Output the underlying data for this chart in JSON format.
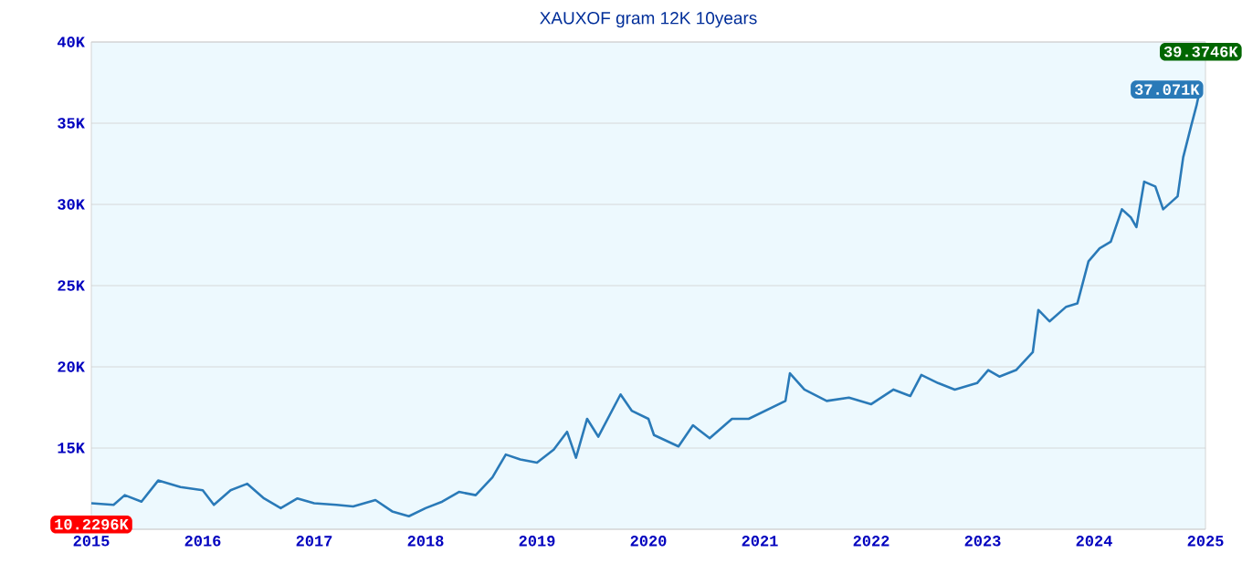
{
  "chart_data": {
    "type": "line",
    "title": "XAUXOF gram 12K 10years",
    "x": [
      2015.0,
      2015.2,
      2015.3,
      2015.45,
      2015.6,
      2015.8,
      2016.0,
      2016.1,
      2016.25,
      2016.4,
      2016.55,
      2016.7,
      2016.85,
      2017.0,
      2017.2,
      2017.35,
      2017.55,
      2017.7,
      2017.85,
      2018.0,
      2018.15,
      2018.3,
      2018.45,
      2018.6,
      2018.72,
      2018.85,
      2019.0,
      2019.15,
      2019.27,
      2019.35,
      2019.45,
      2019.55,
      2019.75,
      2019.85,
      2020.0,
      2020.05,
      2020.27,
      2020.4,
      2020.55,
      2020.75,
      2020.9,
      2021.23,
      2021.27,
      2021.4,
      2021.6,
      2021.8,
      2022.0,
      2022.2,
      2022.35,
      2022.45,
      2022.6,
      2022.75,
      2022.95,
      2023.05,
      2023.15,
      2023.3,
      2023.45,
      2023.5,
      2023.6,
      2023.75,
      2023.85,
      2023.95,
      2024.05,
      2024.15,
      2024.25,
      2024.33,
      2024.38,
      2024.45,
      2024.55,
      2024.62,
      2024.75,
      2024.8,
      2024.87,
      2024.92,
      2024.95
    ],
    "series": [
      {
        "color": "#2a7ab8",
        "values": [
          11600,
          11500,
          12100,
          11700,
          13000,
          12600,
          12400,
          11500,
          12400,
          12800,
          11900,
          11300,
          11900,
          11600,
          11500,
          11400,
          11800,
          11100,
          10800,
          11300,
          11700,
          12300,
          12100,
          13200,
          14600,
          14300,
          14100,
          14900,
          16000,
          14400,
          16800,
          15700,
          18300,
          17300,
          16800,
          15800,
          15100,
          16400,
          15600,
          16800,
          16800,
          17900,
          19600,
          18600,
          17900,
          18100,
          17700,
          18600,
          18200,
          19500,
          19000,
          18600,
          19000,
          19800,
          19400,
          19800,
          20900,
          23500,
          22800,
          23700,
          23900,
          26500,
          27300,
          27700,
          29700,
          29200,
          28600,
          31400,
          31100,
          29700,
          30500,
          32900,
          34800,
          36100,
          37071
        ]
      }
    ],
    "xlim": [
      2015,
      2025
    ],
    "ylim": [
      10000,
      40000
    ],
    "xticks": [
      2015,
      2016,
      2017,
      2018,
      2019,
      2020,
      2021,
      2022,
      2023,
      2024,
      2025
    ],
    "yticks": [
      {
        "value": 10000,
        "label": null
      },
      {
        "value": 15000,
        "label": "15K"
      },
      {
        "value": 20000,
        "label": "20K"
      },
      {
        "value": 25000,
        "label": "25K"
      },
      {
        "value": 30000,
        "label": "30K"
      },
      {
        "value": 35000,
        "label": "35K"
      },
      {
        "value": 40000,
        "label": "40K"
      }
    ],
    "grid": "y",
    "annotations": [
      "10.2296K",
      {
        "text": "37.071K",
        "x": 2024.95,
        "y": 37071
      },
      "39.3746K"
    ]
  }
}
